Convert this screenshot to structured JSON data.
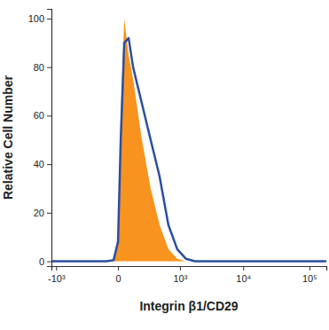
{
  "chart_data": {
    "type": "histogram",
    "x_label": "Integrin β1/CD29",
    "y_label": "Relative Cell Number",
    "x": [
      -1200,
      -65,
      -22,
      0,
      13,
      32,
      59,
      91,
      171,
      279,
      427,
      627,
      899,
      1269,
      1769,
      180000
    ],
    "series": [
      {
        "type": "area",
        "color": "#f7931e",
        "values": [
          0,
          0,
          0.5,
          10,
          60,
          100,
          85,
          75,
          50,
          30,
          15,
          5,
          1,
          0,
          0,
          0
        ]
      },
      {
        "type": "line",
        "color": "#2b4ea2",
        "values": [
          0,
          0,
          0.5,
          8,
          50,
          90,
          92,
          80,
          65,
          50,
          35,
          15,
          5,
          1,
          0,
          0
        ]
      }
    ],
    "xlim": [
      -1200,
      180000
    ],
    "xticks": [
      {
        "value": -1000,
        "label": "-10³"
      },
      0,
      {
        "value": 1000,
        "label": "10³"
      },
      {
        "value": 10000,
        "label": "10⁴"
      },
      {
        "value": 100000,
        "label": "10⁵"
      }
    ],
    "ylim": [
      -2,
      104
    ],
    "yticks": [
      0,
      20,
      40,
      60,
      80,
      100
    ],
    "log": "x",
    "grid": false
  }
}
